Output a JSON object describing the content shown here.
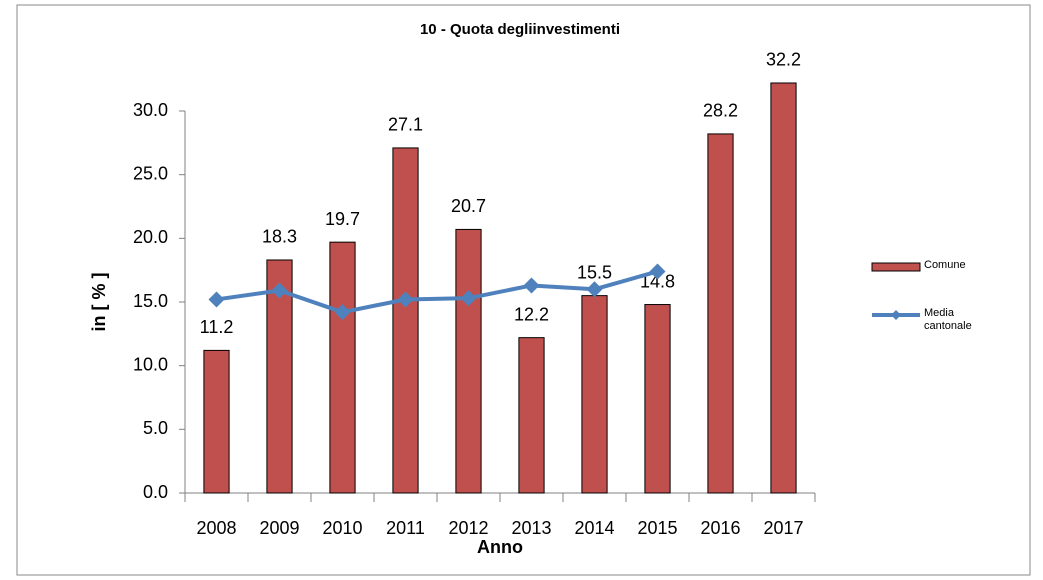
{
  "chart_data": {
    "type": "bar_line",
    "title": "10 - Quota degliinvestimenti",
    "y_label": "in [ % ]",
    "x_label": "Anno",
    "categories": [
      "2008",
      "2009",
      "2010",
      "2011",
      "2012",
      "2013",
      "2014",
      "2015",
      "2016",
      "2017"
    ],
    "series": [
      {
        "name": "Comune",
        "type": "bar",
        "color": "#c0504d",
        "values": [
          11.2,
          18.3,
          19.7,
          27.1,
          20.7,
          12.2,
          15.5,
          14.8,
          28.2,
          32.2
        ]
      },
      {
        "name": "Media cantonale",
        "type": "line",
        "color": "#4f81bd",
        "values": [
          15.2,
          15.9,
          14.2,
          15.2,
          15.3,
          16.3,
          16.0,
          17.4,
          null,
          null
        ]
      }
    ],
    "ylim": [
      0,
      30
    ],
    "yticks": [
      {
        "value": 0,
        "label": "0.0"
      },
      {
        "value": 5,
        "label": "5.0"
      },
      {
        "value": 10,
        "label": "10.0"
      },
      {
        "value": 15,
        "label": "15.0"
      },
      {
        "value": 20,
        "label": "20.0"
      },
      {
        "value": 25,
        "label": "25.0"
      },
      {
        "value": 30,
        "label": "30.0"
      }
    ],
    "legend": "right"
  }
}
